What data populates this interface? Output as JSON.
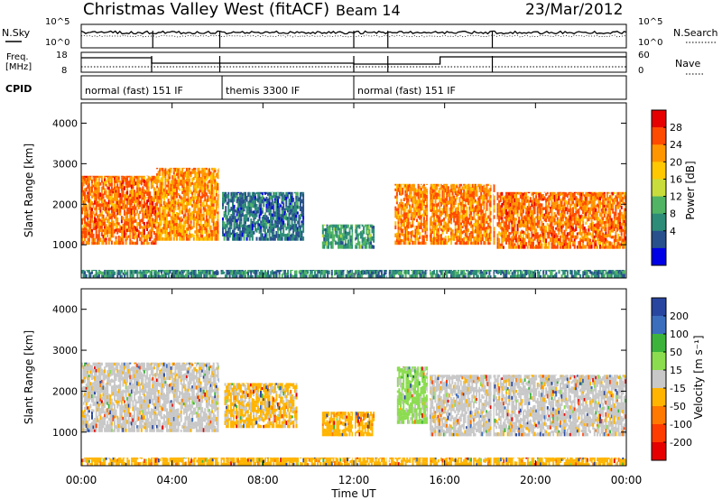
{
  "header": {
    "title": "Christmas Valley West (fitACF)",
    "beam": "Beam 14",
    "date": "23/Mar/2012"
  },
  "nsky_panel": {
    "left_label": "N.Sky",
    "right_label": "N.Search",
    "ylim": [
      1,
      100000
    ],
    "scale": "log",
    "tick_labels": [
      "10^5",
      "10^0"
    ]
  },
  "freq_panel": {
    "left_label_line1": "Freq.",
    "left_label_line2": "[MHz]",
    "right_label": "Nave",
    "left_ticks": [
      "18",
      "8"
    ],
    "right_ticks": [
      "60",
      "0"
    ]
  },
  "cpid_panel": {
    "label": "CPID",
    "modes": [
      {
        "start_hour": 0.0,
        "end_hour": 6.2,
        "text": "normal (fast) 151 IF"
      },
      {
        "start_hour": 6.2,
        "end_hour": 12.0,
        "text": "themis 3300 IF"
      },
      {
        "start_hour": 12.0,
        "end_hour": 24.0,
        "text": "normal (fast) 151 IF"
      }
    ]
  },
  "power_panel": {
    "ylabel": "Slant Range [km]",
    "colorbar_label": "Power [dB]",
    "colorbar_ticks": [
      "28",
      "24",
      "20",
      "16",
      "12",
      "8",
      "4"
    ],
    "colors": [
      "#e60000",
      "#ff4b00",
      "#ff9600",
      "#ffc800",
      "#c8dc3c",
      "#50b464",
      "#2d8c78",
      "#28508c",
      "#0000e6"
    ]
  },
  "velocity_panel": {
    "ylabel": "Slant Range [km]",
    "colorbar_label": "Velocity [m s⁻¹]",
    "colorbar_ticks": [
      "200",
      "100",
      "50",
      "15",
      "-15",
      "-50",
      "-100",
      "-200"
    ],
    "colors": [
      "#2846a0",
      "#3c6ebe",
      "#3cb43c",
      "#8cdc50",
      "#c8c8c8",
      "#ffb400",
      "#ff7800",
      "#ff3c00",
      "#e60000"
    ]
  },
  "xaxis": {
    "label": "Time UT",
    "tick_labels": [
      "00:00",
      "04:00",
      "08:00",
      "12:00",
      "16:00",
      "20:00",
      "00:00"
    ]
  },
  "chart_data": {
    "type": "heatmap",
    "title": "Christmas Valley West (fitACF)",
    "subtitle": "Beam 14",
    "date": "23/Mar/2012",
    "x_axis": {
      "label": "Time UT",
      "range_hours": [
        0,
        24
      ],
      "ticks": [
        "00:00",
        "04:00",
        "08:00",
        "12:00",
        "16:00",
        "20:00",
        "00:00"
      ]
    },
    "y_axis": {
      "label": "Slant Range [km]",
      "range_km": [
        180,
        4500
      ],
      "ticks": [
        1000,
        2000,
        3000,
        4000
      ]
    },
    "panels": [
      {
        "name": "power",
        "colorbar": {
          "label": "Power [dB]",
          "min": 0,
          "max": 32,
          "ticks": [
            4,
            8,
            12,
            16,
            20,
            24,
            28
          ]
        },
        "regions": [
          {
            "t0": 0.0,
            "t1": 3.3,
            "r0": 1000,
            "r1": 2700,
            "dB": 26
          },
          {
            "t0": 3.3,
            "t1": 6.1,
            "r0": 1100,
            "r1": 2900,
            "dB": 24
          },
          {
            "t0": 6.2,
            "t1": 9.8,
            "r0": 1100,
            "r1": 2300,
            "dB": 6
          },
          {
            "t0": 10.6,
            "t1": 12.9,
            "r0": 900,
            "r1": 1500,
            "dB": 10
          },
          {
            "t0": 13.8,
            "t1": 18.2,
            "r0": 1000,
            "r1": 2500,
            "dB": 25
          },
          {
            "t0": 18.3,
            "t1": 24.0,
            "r0": 900,
            "r1": 2300,
            "dB": 26
          },
          {
            "t0": 0.0,
            "t1": 24.0,
            "r0": 180,
            "r1": 380,
            "dB": 8
          }
        ]
      },
      {
        "name": "velocity",
        "colorbar": {
          "label": "Velocity [m s⁻¹]",
          "min": -250,
          "max": 250,
          "ticks": [
            -200,
            -100,
            -50,
            -15,
            15,
            50,
            100,
            200
          ]
        },
        "regions": [
          {
            "t0": 0.0,
            "t1": 6.1,
            "r0": 1000,
            "r1": 2700,
            "v": 0
          },
          {
            "t0": 6.3,
            "t1": 9.5,
            "r0": 1100,
            "r1": 2200,
            "v": -40
          },
          {
            "t0": 10.6,
            "t1": 12.9,
            "r0": 900,
            "r1": 1500,
            "v": -60
          },
          {
            "t0": 13.9,
            "t1": 15.3,
            "r0": 1200,
            "r1": 2600,
            "v": 60
          },
          {
            "t0": 15.3,
            "t1": 24.0,
            "r0": 900,
            "r1": 2400,
            "v": 0
          },
          {
            "t0": 0.0,
            "t1": 24.0,
            "r0": 180,
            "r1": 380,
            "v": -60
          }
        ]
      }
    ],
    "grid": false
  }
}
